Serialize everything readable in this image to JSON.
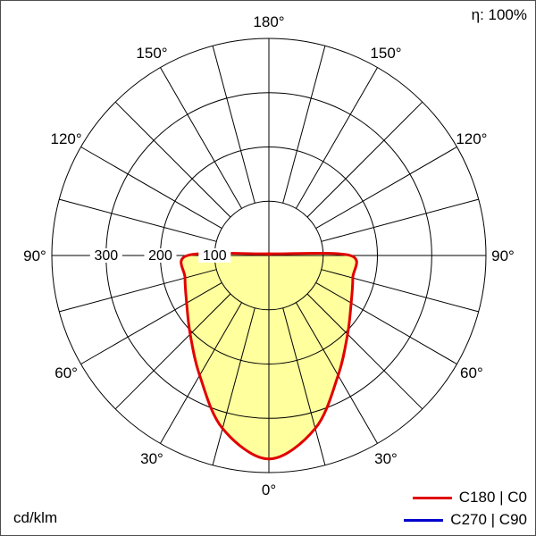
{
  "frame": {
    "eta_label": "η: 100%",
    "unit_label": "cd/klm"
  },
  "legend": [
    {
      "label": "C180 | C0",
      "color": "#e10000"
    },
    {
      "label": "C270 | C90",
      "color": "#0000cc"
    }
  ],
  "chart_data": {
    "type": "polar",
    "subtype": "luminous-intensity-distribution",
    "unit": "cd/klm",
    "efficiency_percent": 100,
    "angle_step_deg": 15,
    "angle_tick_labels": [
      "0°",
      "30°",
      "60°",
      "90°",
      "120°",
      "150°",
      "180°"
    ],
    "radial_ticks": [
      100,
      200,
      300
    ],
    "radial_max": 400,
    "grid_color": "#000000",
    "series": [
      {
        "name": "C180 | C0",
        "color": "#e10000",
        "fill": "#ffff9e",
        "symmetric": true,
        "gamma_deg": [
          0,
          15,
          30,
          45,
          60,
          75,
          90,
          105,
          120,
          135,
          150,
          165,
          180
        ],
        "values_cd_per_klm": [
          375,
          330,
          255,
          205,
          175,
          160,
          150,
          12,
          6,
          4,
          3,
          2,
          2
        ]
      },
      {
        "name": "C270 | C90",
        "color": "#0000cc",
        "visible": false
      }
    ]
  }
}
